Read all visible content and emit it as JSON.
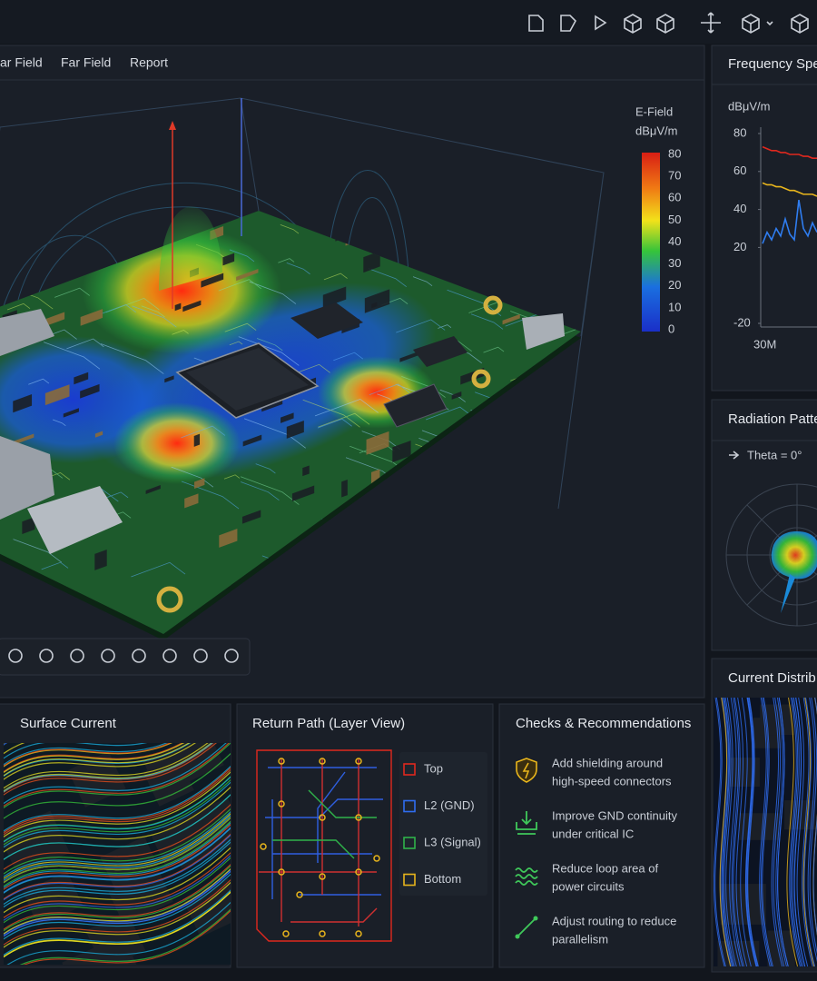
{
  "viewport": {
    "tabs": [
      "ar Field",
      "Far Field",
      "Report"
    ],
    "colorbar": {
      "title": "E-Field",
      "unit": "dBμV/m",
      "ticks": [
        80,
        70,
        60,
        50,
        40,
        30,
        20,
        10,
        0
      ]
    }
  },
  "frequency_panel": {
    "title": "Frequency Spe",
    "chart": {
      "type": "line",
      "y_label": "dBμV/m",
      "ylim": [
        -20,
        80
      ],
      "yticks": [
        80,
        60,
        40,
        20,
        -20
      ],
      "x_tick_label": "30M",
      "series": [
        {
          "color": "#e0281e",
          "values": [
            73,
            72,
            71,
            71,
            70,
            70,
            69,
            69,
            69,
            68,
            68,
            67,
            67
          ]
        },
        {
          "color": "#e8b51c",
          "values": [
            54,
            53,
            53,
            52,
            52,
            51,
            50,
            50,
            49,
            48,
            48,
            48,
            47
          ]
        },
        {
          "color": "#2f7df0",
          "values": [
            22,
            28,
            24,
            30,
            26,
            35,
            27,
            24,
            45,
            30,
            26,
            33,
            28
          ]
        }
      ]
    }
  },
  "radiation_panel": {
    "title": "Radiation Patte",
    "theta": "Theta = 0°"
  },
  "current_panel": {
    "title": "Current Distrib"
  },
  "surface_panel": {
    "title": "Surface Current"
  },
  "return_path": {
    "title": "Return Path (Layer View)",
    "legend": [
      {
        "label": "Top",
        "color": "#e0281e"
      },
      {
        "label": "L2 (GND)",
        "color": "#2f6df0"
      },
      {
        "label": "L3 (Signal)",
        "color": "#2fb34a"
      },
      {
        "label": "Bottom",
        "color": "#e8b51c"
      }
    ]
  },
  "checks": {
    "title": "Checks & Recommendations",
    "items": [
      [
        "Add shielding around",
        "high-speed connectors"
      ],
      [
        "Improve GND continuity",
        "under critical IC"
      ],
      [
        "Reduce loop area of",
        "power circuits"
      ],
      [
        "Adjust routing to reduce",
        "parallelism"
      ]
    ]
  }
}
